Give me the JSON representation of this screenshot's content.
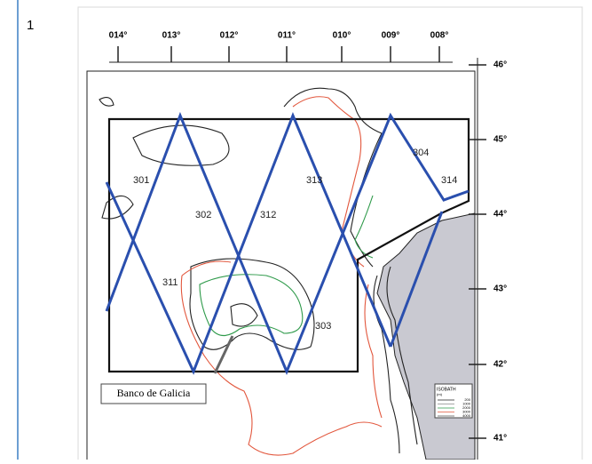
{
  "figure_number": "1",
  "longitude_labels": [
    "014°",
    "013°",
    "012°",
    "011°",
    "010°",
    "009°",
    "008°"
  ],
  "latitude_labels": [
    "46°",
    "45°",
    "44°",
    "43°",
    "42°",
    "41°"
  ],
  "track_labels": [
    "301",
    "302",
    "312",
    "313",
    "304",
    "314",
    "311",
    "303"
  ],
  "place_label": "Banco de Galicia",
  "legend": {
    "title": "ISOBATH",
    "unit": "(m)",
    "labels": [
      "200",
      "1000",
      "2000",
      "3000",
      "4000"
    ]
  }
}
